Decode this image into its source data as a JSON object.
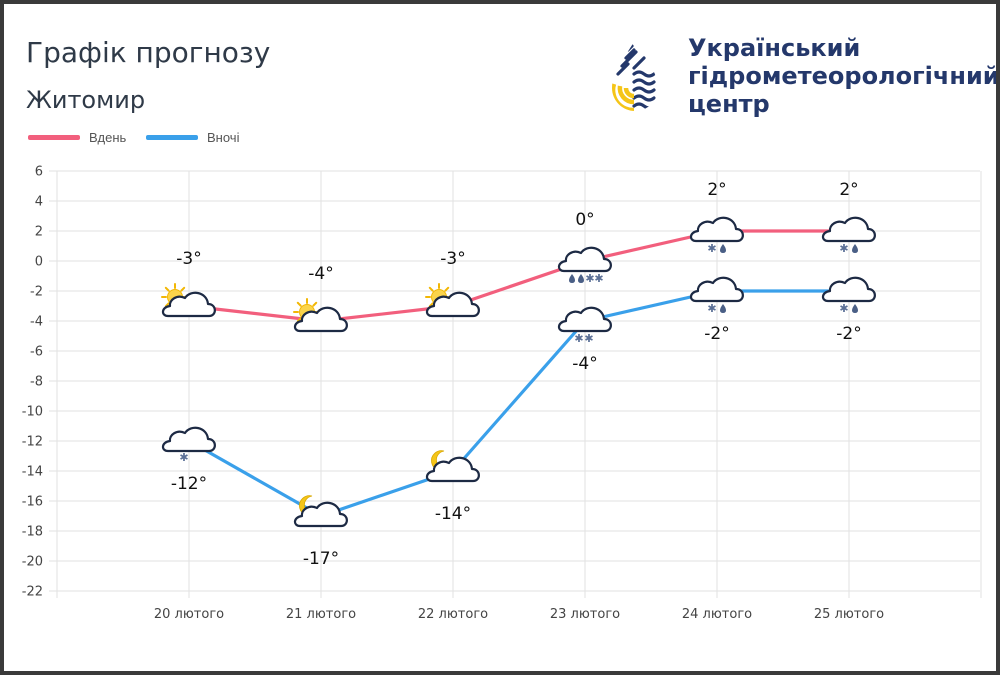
{
  "header": {
    "title": "Графік прогнозу",
    "city": "Житомир"
  },
  "logo": {
    "line1": "Український",
    "line2": "гідрометеорологічний",
    "line3": "центр",
    "colors": {
      "navy": "#24386b",
      "yellow": "#f5c518",
      "blue": "#2b5aa8"
    }
  },
  "legend": {
    "day": "Вдень",
    "night": "Вночі"
  },
  "colors": {
    "day": "#f25f7d",
    "night": "#3aa0ea",
    "grid": "#e2e2e2"
  },
  "chart_data": {
    "type": "line",
    "categories": [
      "20 лютого",
      "21 лютого",
      "22 лютого",
      "23 лютого",
      "24 лютого",
      "25 лютого"
    ],
    "ylim": [
      -22,
      6
    ],
    "yticks": [
      6,
      4,
      2,
      0,
      -2,
      -4,
      -6,
      -8,
      -10,
      -12,
      -14,
      -16,
      -18,
      -20,
      -22
    ],
    "grid": true,
    "legend_position": "top-left",
    "series": [
      {
        "name": "Вдень",
        "values": [
          -3,
          -4,
          -3,
          0,
          2,
          2
        ],
        "labels": [
          "-3°",
          "-4°",
          "-3°",
          "0°",
          "2°",
          "2°"
        ],
        "icons": [
          "sun-cloud-icon",
          "sun-cloud-icon",
          "sun-cloud-icon",
          "cloud-rain-snow-icon",
          "cloud-snow-rain-icon",
          "cloud-snow-rain-icon"
        ]
      },
      {
        "name": "Вночі",
        "values": [
          -12,
          -17,
          -14,
          -4,
          -2,
          -2
        ],
        "labels": [
          "-12°",
          "-17°",
          "-14°",
          "-4°",
          "-2°",
          "-2°"
        ],
        "icons": [
          "cloud-snow-icon",
          "moon-cloud-icon",
          "moon-cloud-icon",
          "cloud-snow-icon",
          "cloud-snow-rain-icon",
          "cloud-snow-rain-icon"
        ]
      }
    ]
  }
}
